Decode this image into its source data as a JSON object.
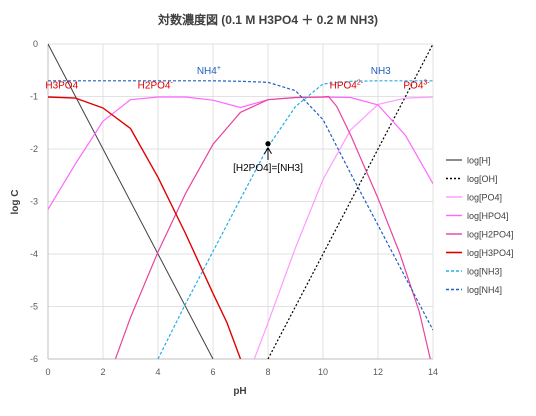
{
  "chart_data": {
    "type": "line",
    "title": "対数濃度図 (0.1 M H3PO4 ＋ 0.2 M NH3)",
    "xlabel": "pH",
    "ylabel": "log C",
    "xlim": [
      0,
      14
    ],
    "ylim": [
      -6,
      0
    ],
    "x_ticks": [
      "0",
      "2",
      "4",
      "6",
      "8",
      "10",
      "12",
      "14"
    ],
    "y_ticks": [
      "0",
      "-1",
      "-2",
      "-3",
      "-4",
      "-5",
      "-6"
    ],
    "grid": true,
    "legend_position": "right",
    "constants": {
      "C_phosphate": 0.1,
      "C_ammonia": 0.2,
      "pKa": [
        2.15,
        7.2,
        12.35
      ],
      "pKa_NH4": 9.25,
      "pKw": 14
    },
    "series": [
      {
        "name": "log[H]",
        "color": "#404040",
        "dash": "",
        "width": 1,
        "points": [
          [
            0,
            0
          ],
          [
            6,
            -6
          ]
        ]
      },
      {
        "name": "log[OH]",
        "color": "#000000",
        "dash": "2,2",
        "width": 1.2,
        "points": [
          [
            8,
            -6
          ],
          [
            14,
            0
          ]
        ]
      },
      {
        "name": "log[PO4]",
        "color": "#ff99ff",
        "dash": "",
        "width": 1.2,
        "points": [
          [
            7.5,
            -6
          ],
          [
            8,
            -5.31
          ],
          [
            9,
            -3.88
          ],
          [
            10,
            -2.58
          ],
          [
            11,
            -1.64
          ],
          [
            12,
            -1.15
          ],
          [
            13,
            -1.03
          ],
          [
            14,
            -1.01
          ]
        ]
      },
      {
        "name": "log[HPO4]",
        "color": "#ff66ff",
        "dash": "",
        "width": 1.2,
        "points": [
          [
            0,
            -3.15
          ],
          [
            1,
            -2.28
          ],
          [
            2,
            -1.47
          ],
          [
            3,
            -1.06
          ],
          [
            4,
            -1.01
          ],
          [
            5,
            -1.01
          ],
          [
            6,
            -1.07
          ],
          [
            7,
            -1.21
          ],
          [
            8,
            -1.06
          ],
          [
            9,
            -1.02
          ],
          [
            10,
            -1.01
          ],
          [
            11,
            -1.02
          ],
          [
            12,
            -1.16
          ],
          [
            13,
            -1.74
          ],
          [
            14,
            -2.66
          ]
        ]
      },
      {
        "name": "log[H2PO4]",
        "color": "#e8449c",
        "dash": "",
        "width": 1.2,
        "points": [
          [
            2.45,
            -6
          ],
          [
            3,
            -5.21
          ],
          [
            4,
            -3.96
          ],
          [
            5,
            -2.85
          ],
          [
            6,
            -1.91
          ],
          [
            7,
            -1.3
          ],
          [
            8,
            -1.06
          ],
          [
            9,
            -1.02
          ],
          [
            10,
            -1.01
          ],
          [
            10.2,
            -1.0
          ],
          [
            10.5,
            -1.19
          ],
          [
            11,
            -1.73
          ],
          [
            12,
            -2.94
          ],
          [
            12.8,
            -4.0
          ],
          [
            13.5,
            -5.1
          ],
          [
            13.9,
            -6
          ]
        ]
      },
      {
        "name": "log[H3PO4]",
        "color": "#e00000",
        "dash": "",
        "width": 1.4,
        "points": [
          [
            0,
            -1.01
          ],
          [
            1,
            -1.03
          ],
          [
            2,
            -1.22
          ],
          [
            3,
            -1.61
          ],
          [
            4,
            -2.54
          ],
          [
            5,
            -3.61
          ],
          [
            6,
            -4.75
          ],
          [
            6.5,
            -5.3
          ],
          [
            7,
            -6
          ]
        ]
      },
      {
        "name": "log[NH3]",
        "color": "#22aee8",
        "dash": "3,2",
        "width": 1.2,
        "points": [
          [
            4,
            -6
          ],
          [
            5,
            -4.95
          ],
          [
            6,
            -3.95
          ],
          [
            7,
            -2.95
          ],
          [
            8,
            -1.96
          ],
          [
            9,
            -1.19
          ],
          [
            10,
            -0.76
          ],
          [
            11,
            -0.71
          ],
          [
            12,
            -0.7
          ],
          [
            13,
            -0.7
          ],
          [
            14,
            -0.7
          ]
        ]
      },
      {
        "name": "log[NH4]",
        "color": "#2060c0",
        "dash": "3,2",
        "width": 1.2,
        "points": [
          [
            0,
            -0.7
          ],
          [
            5,
            -0.7
          ],
          [
            6,
            -0.7
          ],
          [
            7,
            -0.71
          ],
          [
            8,
            -0.73
          ],
          [
            9,
            -0.89
          ],
          [
            10,
            -1.44
          ],
          [
            11,
            -2.46
          ],
          [
            12,
            -3.45
          ],
          [
            13,
            -4.45
          ],
          [
            14,
            -5.45
          ]
        ]
      }
    ],
    "labels": [
      {
        "text": "H3PO4",
        "x": 0.5,
        "y": -0.85,
        "color": "#e00000",
        "anchor": "middle"
      },
      {
        "text": "H2PO4",
        "x": 3.9,
        "y": -0.85,
        "color": "#e00000",
        "anchor": "middle",
        "sup": "-"
      },
      {
        "text": "NH4",
        "x": 5.85,
        "y": -0.57,
        "color": "#2060c0",
        "anchor": "middle",
        "sup": "+"
      },
      {
        "text": "NH3",
        "x": 12.1,
        "y": -0.57,
        "color": "#2060c0",
        "anchor": "middle"
      },
      {
        "text": "HPO4",
        "x": 10.85,
        "y": -0.85,
        "color": "#e00000",
        "anchor": "middle",
        "sup": "2-"
      },
      {
        "text": "PO4",
        "x": 13.4,
        "y": -0.85,
        "color": "#e00000",
        "anchor": "middle",
        "sup": "3-"
      }
    ],
    "annotation": {
      "text": "[H2PO4]=[NH3]",
      "point": [
        8,
        -1.9
      ],
      "label_at": [
        8,
        -2.42
      ]
    }
  }
}
